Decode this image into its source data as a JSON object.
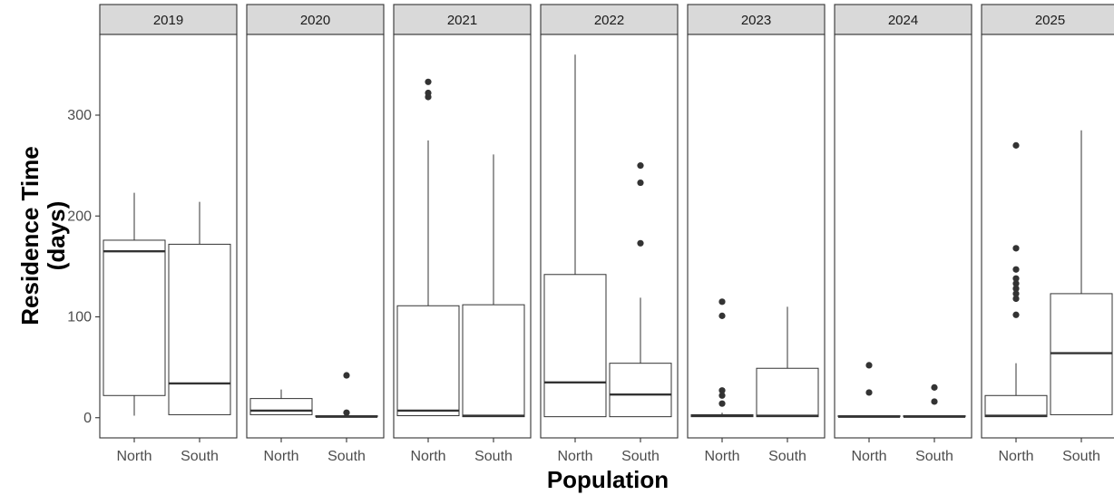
{
  "chart_data": {
    "type": "boxplot",
    "xlabel": "Population",
    "ylabel_lines": [
      "Residence Time",
      "(days)"
    ],
    "ylim": [
      -20,
      380
    ],
    "yticks": [
      0,
      100,
      200,
      300
    ],
    "grid": false,
    "legend": "none",
    "categories": [
      "North",
      "South"
    ],
    "panels": [
      {
        "facet": "2019",
        "boxes": [
          {
            "group": "North",
            "q1": 22,
            "median": 165,
            "q3": 176,
            "whisker_low": 2,
            "whisker_high": 223,
            "outliers": []
          },
          {
            "group": "South",
            "q1": 3,
            "median": 34,
            "q3": 172,
            "whisker_low": 3,
            "whisker_high": 214,
            "outliers": []
          }
        ]
      },
      {
        "facet": "2020",
        "boxes": [
          {
            "group": "North",
            "q1": 3,
            "median": 7,
            "q3": 19,
            "whisker_low": 3,
            "whisker_high": 28,
            "outliers": []
          },
          {
            "group": "South",
            "q1": 1,
            "median": 1,
            "q3": 2,
            "whisker_low": 1,
            "whisker_high": 2,
            "outliers": [
              5,
              42
            ]
          }
        ]
      },
      {
        "facet": "2021",
        "boxes": [
          {
            "group": "North",
            "q1": 2,
            "median": 7,
            "q3": 111,
            "whisker_low": 2,
            "whisker_high": 275,
            "outliers": [
              318,
              322,
              333
            ]
          },
          {
            "group": "South",
            "q1": 1,
            "median": 2,
            "q3": 112,
            "whisker_low": 1,
            "whisker_high": 261,
            "outliers": []
          }
        ]
      },
      {
        "facet": "2022",
        "boxes": [
          {
            "group": "North",
            "q1": 1,
            "median": 35,
            "q3": 142,
            "whisker_low": 1,
            "whisker_high": 360,
            "outliers": []
          },
          {
            "group": "South",
            "q1": 1,
            "median": 23,
            "q3": 54,
            "whisker_low": 1,
            "whisker_high": 119,
            "outliers": [
              173,
              233,
              250
            ]
          }
        ]
      },
      {
        "facet": "2023",
        "boxes": [
          {
            "group": "North",
            "q1": 1,
            "median": 2,
            "q3": 3,
            "whisker_low": 1,
            "whisker_high": 5,
            "outliers": [
              14,
              22,
              27,
              101,
              115
            ]
          },
          {
            "group": "South",
            "q1": 1,
            "median": 2,
            "q3": 49,
            "whisker_low": 1,
            "whisker_high": 110,
            "outliers": []
          }
        ]
      },
      {
        "facet": "2024",
        "boxes": [
          {
            "group": "North",
            "q1": 1,
            "median": 1,
            "q3": 2,
            "whisker_low": 1,
            "whisker_high": 2,
            "outliers": [
              25,
              52
            ]
          },
          {
            "group": "South",
            "q1": 1,
            "median": 1,
            "q3": 2,
            "whisker_low": 1,
            "whisker_high": 2,
            "outliers": [
              16,
              30
            ]
          }
        ]
      },
      {
        "facet": "2025",
        "boxes": [
          {
            "group": "North",
            "q1": 1,
            "median": 2,
            "q3": 22,
            "whisker_low": 1,
            "whisker_high": 54,
            "outliers": [
              102,
              118,
              123,
              128,
              133,
              138,
              147,
              168,
              270
            ]
          },
          {
            "group": "South",
            "q1": 3,
            "median": 64,
            "q3": 123,
            "whisker_low": 3,
            "whisker_high": 285,
            "outliers": []
          }
        ]
      }
    ]
  }
}
